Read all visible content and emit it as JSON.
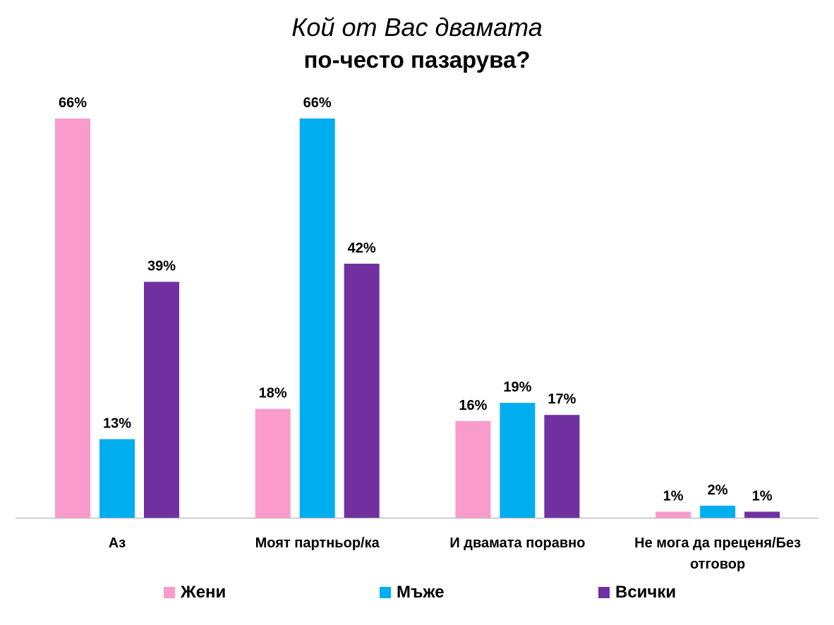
{
  "chart_data": {
    "type": "bar",
    "title": "Кой от Вас двамата",
    "subtitle": "по-често пазарува?",
    "categories": [
      "Аз",
      "Моят партньор/ка",
      "И двамата поравно",
      "Не мога да преценя/Без отговор"
    ],
    "category_lines": [
      [
        "Аз"
      ],
      [
        "Моят партньор/ка"
      ],
      [
        "И двамата поравно"
      ],
      [
        "Не мога да преценя/Без",
        "отговор"
      ]
    ],
    "series": [
      {
        "name": "Жени",
        "color": "#F99BCB",
        "values": [
          66,
          18,
          16,
          1
        ]
      },
      {
        "name": "Мъже",
        "color": "#00AEEF",
        "values": [
          13,
          66,
          19,
          2
        ]
      },
      {
        "name": "Всички",
        "color": "#7030A0",
        "values": [
          39,
          42,
          17,
          1
        ]
      }
    ],
    "value_suffix": "%",
    "ylim": [
      0,
      66
    ],
    "grid": false,
    "legend_position": "bottom"
  }
}
